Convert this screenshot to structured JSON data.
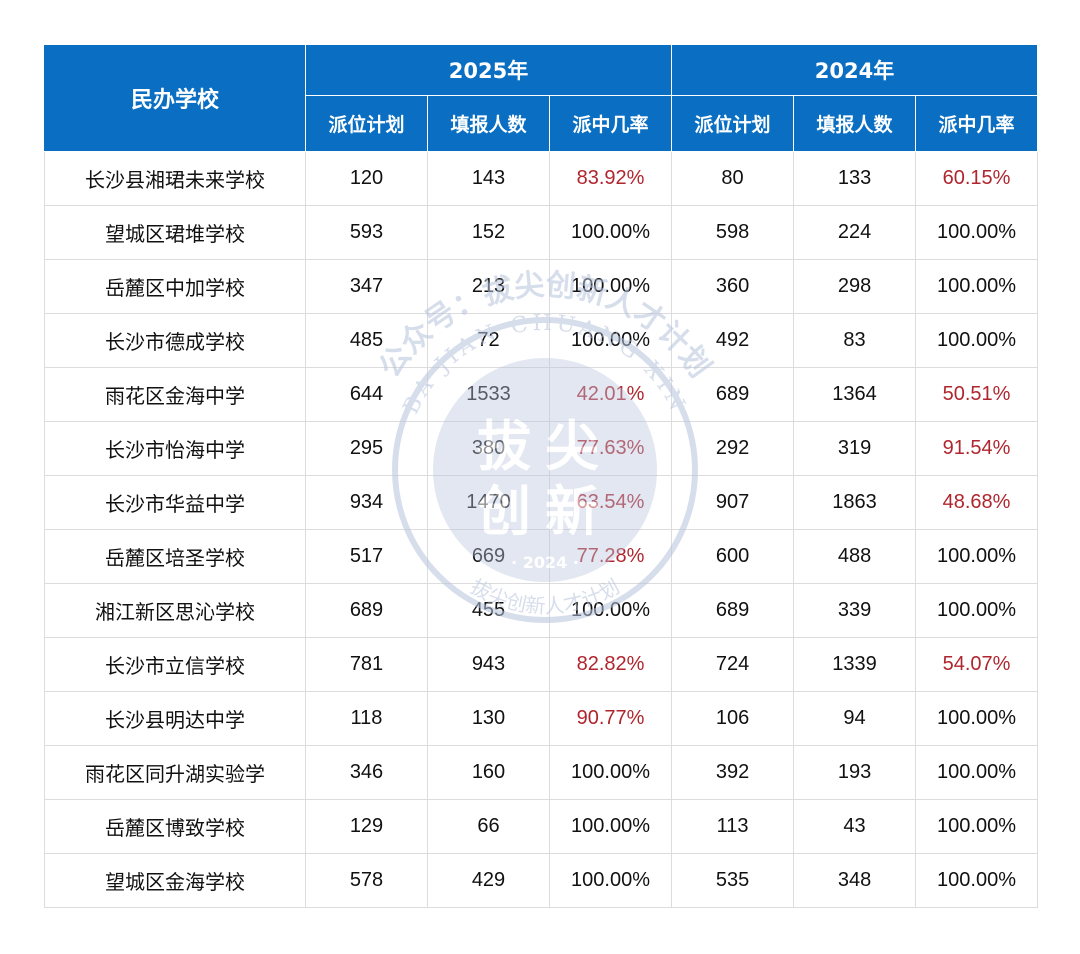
{
  "header": {
    "school_col": "民办学校",
    "years": [
      "2025年",
      "2024年"
    ],
    "sub_cols": [
      "派位计划",
      "填报人数",
      "派中几率",
      "派位计划",
      "填报人数",
      "派中几率"
    ]
  },
  "rows": [
    {
      "school": "长沙县湘珺未来学校",
      "p25": "120",
      "f25": "143",
      "r25": "83.92%",
      "p24": "80",
      "f24": "133",
      "r24": "60.15%"
    },
    {
      "school": "望城区珺堆学校",
      "p25": "593",
      "f25": "152",
      "r25": "100.00%",
      "p24": "598",
      "f24": "224",
      "r24": "100.00%"
    },
    {
      "school": "岳麓区中加学校",
      "p25": "347",
      "f25": "213",
      "r25": "100.00%",
      "p24": "360",
      "f24": "298",
      "r24": "100.00%"
    },
    {
      "school": "长沙市德成学校",
      "p25": "485",
      "f25": "72",
      "r25": "100.00%",
      "p24": "492",
      "f24": "83",
      "r24": "100.00%"
    },
    {
      "school": "雨花区金海中学",
      "p25": "644",
      "f25": "1533",
      "r25": "42.01%",
      "p24": "689",
      "f24": "1364",
      "r24": "50.51%"
    },
    {
      "school": "长沙市怡海中学",
      "p25": "295",
      "f25": "380",
      "r25": "77.63%",
      "p24": "292",
      "f24": "319",
      "r24": "91.54%"
    },
    {
      "school": "长沙市华益中学",
      "p25": "934",
      "f25": "1470",
      "r25": "63.54%",
      "p24": "907",
      "f24": "1863",
      "r24": "48.68%"
    },
    {
      "school": "岳麓区培圣学校",
      "p25": "517",
      "f25": "669",
      "r25": "77.28%",
      "p24": "600",
      "f24": "488",
      "r24": "100.00%"
    },
    {
      "school": "湘江新区思沁学校",
      "p25": "689",
      "f25": "455",
      "r25": "100.00%",
      "p24": "689",
      "f24": "339",
      "r24": "100.00%"
    },
    {
      "school": "长沙市立信学校",
      "p25": "781",
      "f25": "943",
      "r25": "82.82%",
      "p24": "724",
      "f24": "1339",
      "r24": "54.07%"
    },
    {
      "school": "长沙县明达中学",
      "p25": "118",
      "f25": "130",
      "r25": "90.77%",
      "p24": "106",
      "f24": "94",
      "r24": "100.00%"
    },
    {
      "school": "雨花区同升湖实验学",
      "p25": "346",
      "f25": "160",
      "r25": "100.00%",
      "p24": "392",
      "f24": "193",
      "r24": "100.00%"
    },
    {
      "school": "岳麓区博致学校",
      "p25": "129",
      "f25": "66",
      "r25": "100.00%",
      "p24": "113",
      "f24": "43",
      "r24": "100.00%"
    },
    {
      "school": "望城区金海学校",
      "p25": "578",
      "f25": "429",
      "r25": "100.00%",
      "p24": "535",
      "f24": "348",
      "r24": "100.00%"
    }
  ],
  "watermark": {
    "top_arc": "公众号：拔尖创新人才计划",
    "pinyin": "BA JIAN CHUANG XIN",
    "center_line1": "拔尖",
    "center_line2": "创新",
    "year": "· 2024 ·",
    "bottom_arc": "拔尖创新人才计划"
  },
  "colors": {
    "header_bg": "#0a6fc2",
    "header_text": "#ffffff",
    "highlight_red": "#b0262e",
    "watermark": "#b8c4dc"
  }
}
